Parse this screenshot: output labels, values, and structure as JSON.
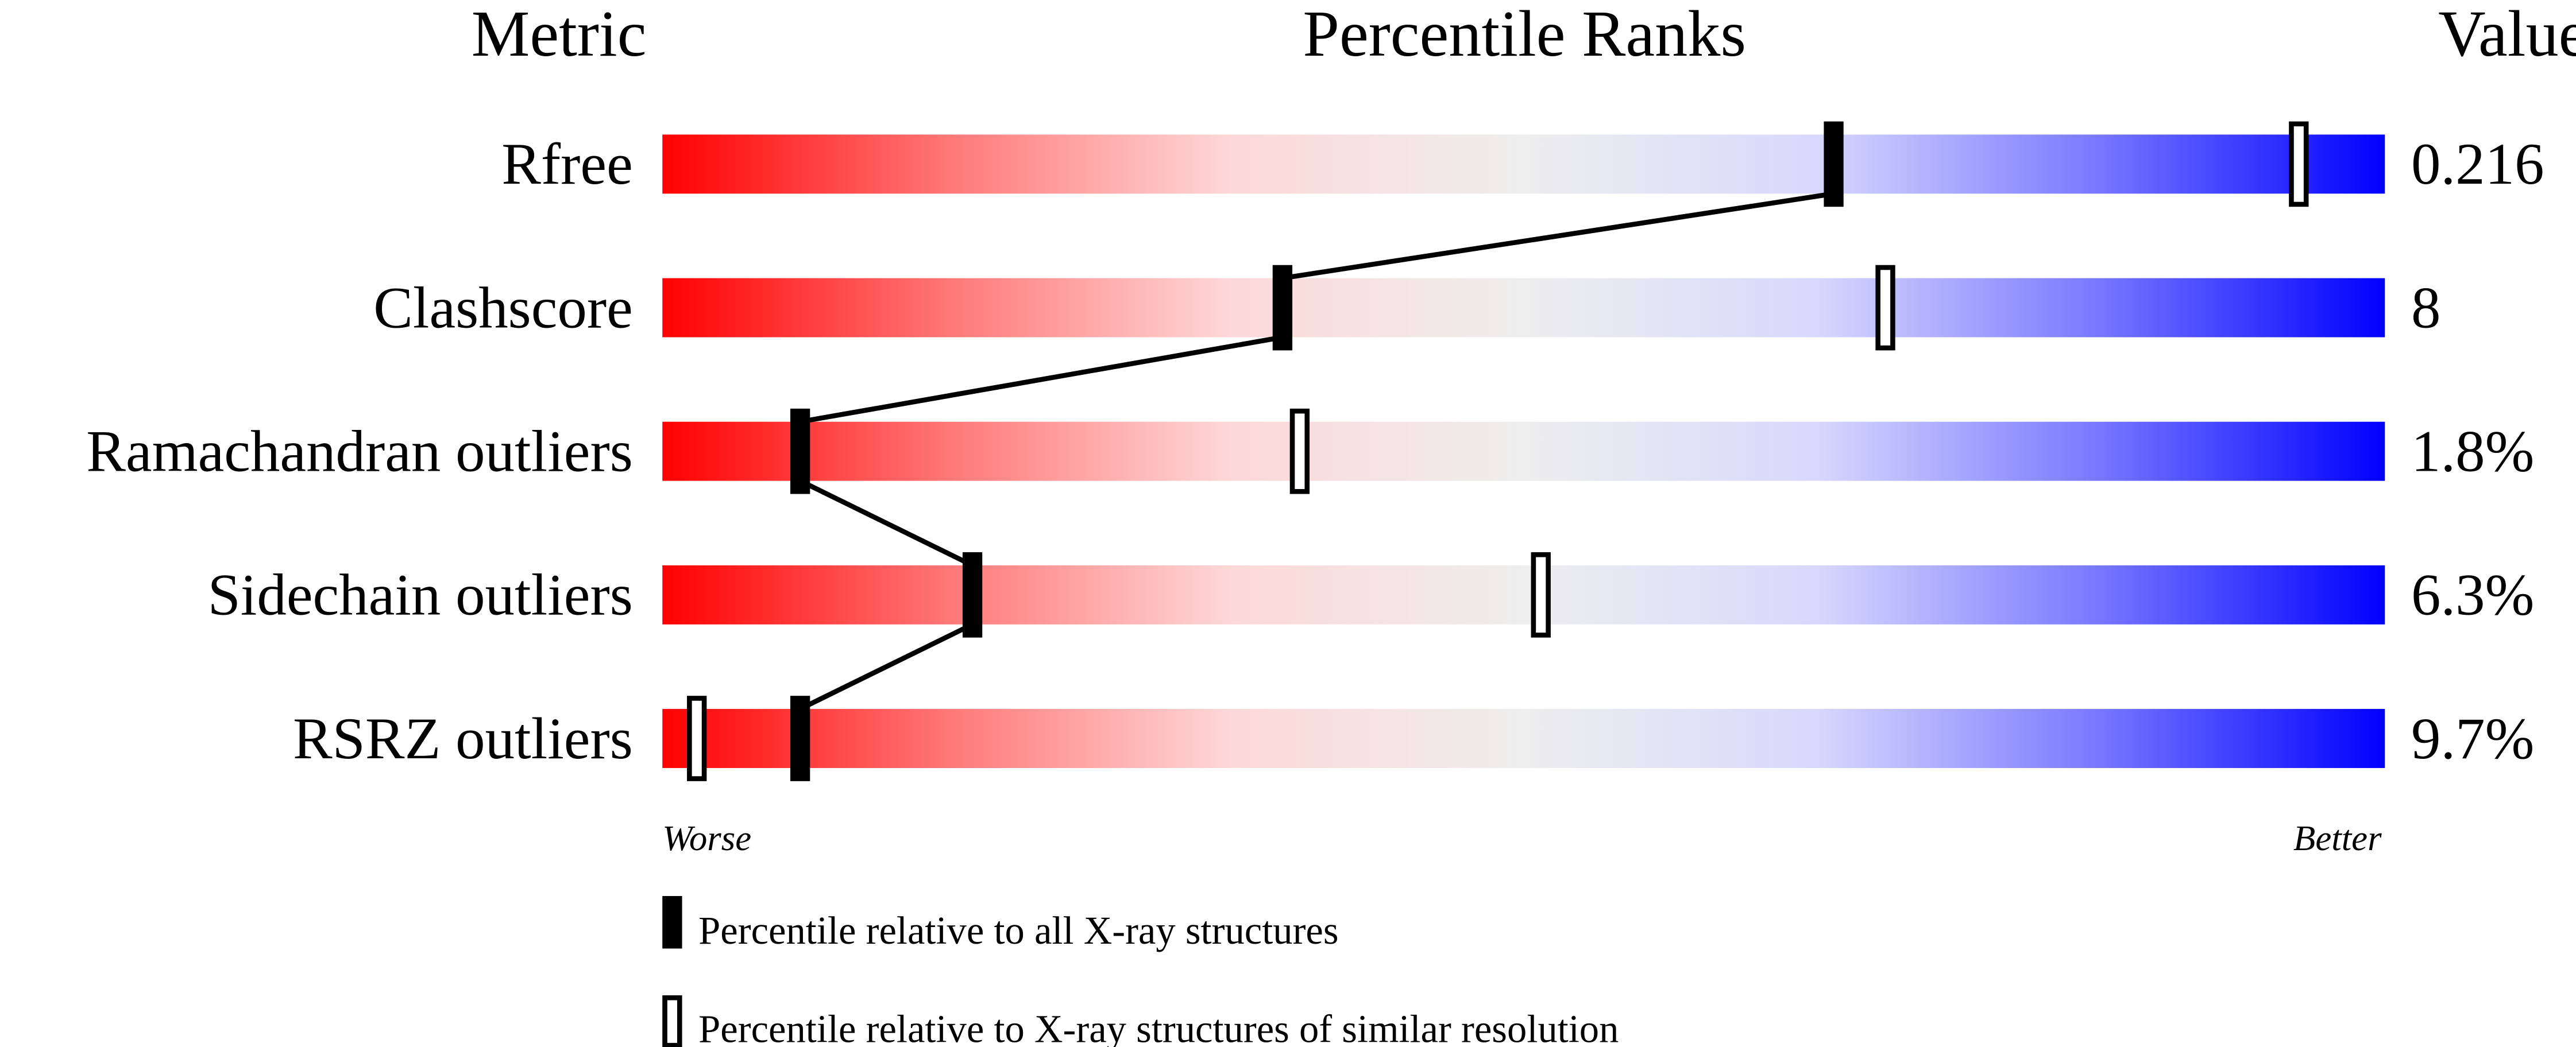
{
  "chart_data": {
    "type": "percentile-bar",
    "headers": {
      "metric": "Metric",
      "ranks": "Percentile Ranks",
      "value": "Value"
    },
    "xlim": [
      0,
      100
    ],
    "rows": [
      {
        "metric": "Rfree",
        "value": "0.216",
        "percentile_all": 68,
        "percentile_similar": 95
      },
      {
        "metric": "Clashscore",
        "value": "8",
        "percentile_all": 36,
        "percentile_similar": 71
      },
      {
        "metric": "Ramachandran outliers",
        "value": "1.8%",
        "percentile_all": 8,
        "percentile_similar": 37
      },
      {
        "metric": "Sidechain outliers",
        "value": "6.3%",
        "percentile_all": 18,
        "percentile_similar": 51
      },
      {
        "metric": "RSRZ outliers",
        "value": "9.7%",
        "percentile_all": 8,
        "percentile_similar": 2
      }
    ],
    "axis_labels": {
      "left": "Worse",
      "right": "Better"
    },
    "legend": [
      {
        "marker": "filled",
        "label": "Percentile relative to all X-ray structures"
      },
      {
        "marker": "hollow",
        "label": "Percentile relative to X-ray structures of similar resolution"
      }
    ],
    "colors": {
      "worse": "#ff0000",
      "middle": "#eeeeee",
      "better": "#0000ff",
      "marker": "#000000"
    }
  }
}
